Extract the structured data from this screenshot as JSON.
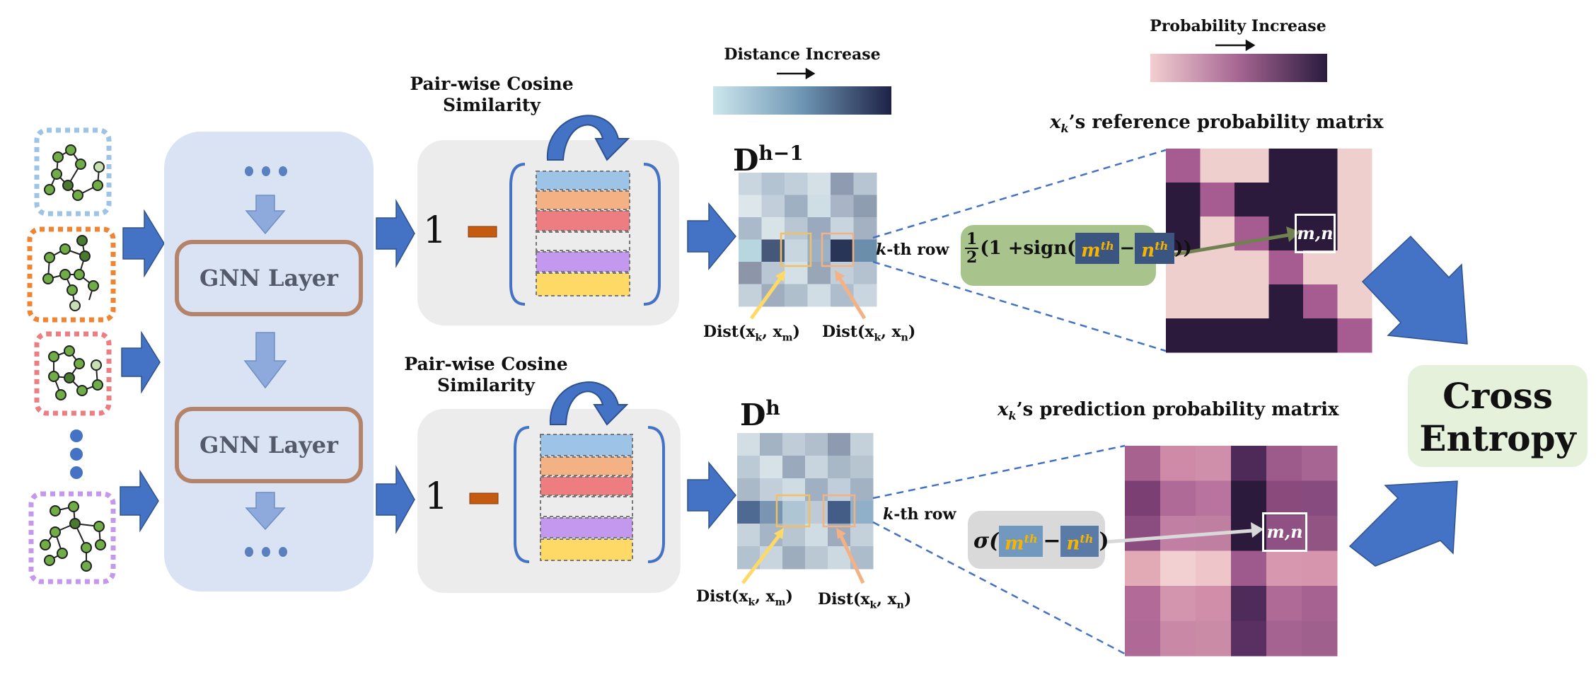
{
  "colorbars": {
    "distance": {
      "label": "Distance Increase",
      "colors": [
        "#cde6ec",
        "#6e96b4",
        "#1e2246"
      ]
    },
    "probability": {
      "label": "Probability Increase",
      "colors": [
        "#f2cfd0",
        "#a66592",
        "#2a1b3e"
      ]
    }
  },
  "stages": {
    "similarity_top": {
      "line1": "Pair-wise Cosine",
      "line2": "Similarity"
    },
    "similarity_bottom": {
      "line1": "Pair-wise Cosine",
      "line2": "Similarity"
    },
    "one_minus": "1",
    "gnn_layer_1": "GNN Layer",
    "gnn_layer_2": "GNN Layer"
  },
  "distance_matrices": {
    "top": {
      "title_base": "D",
      "title_sup": "h−1",
      "row_label_k": "k",
      "row_label_rest": "-th row",
      "dist_m": "Dist(x",
      "dist_m_sub": "k",
      "dist_m_mid": ", x",
      "dist_m_sub2": "m",
      "dist_end": ")",
      "dist_n": "Dist(x",
      "dist_n_sub": "k",
      "dist_n_mid": ", x",
      "dist_n_sub2": "n"
    },
    "bottom": {
      "title_base": "D",
      "title_sup": "h",
      "row_label_k": "k",
      "row_label_rest": "-th row",
      "dist_m": "Dist(x",
      "dist_m_sub": "k",
      "dist_m_mid": ", x",
      "dist_m_sub2": "m",
      "dist_end": ")",
      "dist_n": "Dist(x",
      "dist_n_sub": "k",
      "dist_n_mid": ", x",
      "dist_n_sub2": "n"
    }
  },
  "probability_matrices": {
    "reference": {
      "title_var": "x",
      "title_sub": "k",
      "title_rest": "’s reference probability matrix",
      "cell_label": "m,n"
    },
    "prediction": {
      "title_var": "x",
      "title_sub": "k",
      "title_rest": "’s prediction probability matrix",
      "cell_label": "m,n"
    }
  },
  "formulas": {
    "reference": {
      "frac_num": "1",
      "frac_den": "2",
      "part1": "(1 +sign(",
      "m": "m",
      "m_sup": "th",
      "minus": "−",
      "n": "n",
      "n_sup": "th",
      "close": "))"
    },
    "prediction": {
      "sigma": "σ(",
      "m": "m",
      "m_sup": "th",
      "minus": "−",
      "n": "n",
      "n_sup": "th",
      "close": ")"
    }
  },
  "loss": {
    "line1": "Cross",
    "line2": "Entropy"
  },
  "colors": {
    "arrow_blue": "#4472c4",
    "gnn_panel": "#dae3f3",
    "gnn_border": "#b5836a",
    "stripe_colors": [
      "#9dc3e6",
      "#f4b183",
      "#ee7d82",
      "#d0d0d0",
      "#c398ee",
      "#ffd966"
    ],
    "graph_outline_colors": [
      "#9dc3e6",
      "#f18433",
      "#ee7d82",
      "#c398ee"
    ],
    "node_green": "#70ad47",
    "node_dark": "#4a7a30"
  }
}
